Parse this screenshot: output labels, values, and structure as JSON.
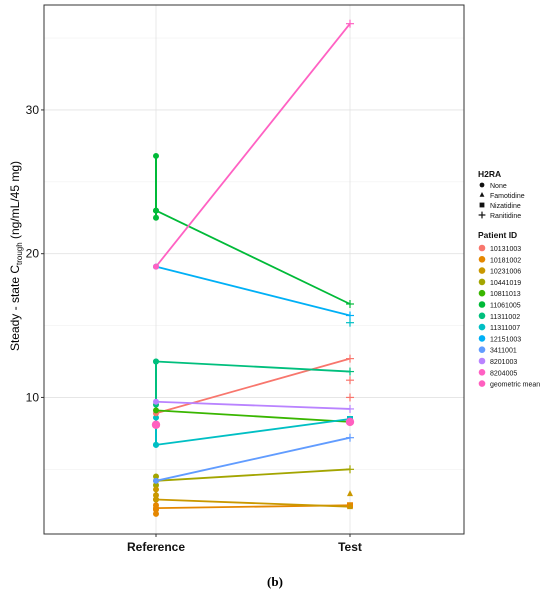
{
  "caption": "(b)",
  "chart_data": {
    "type": "line",
    "xlabel": "",
    "ylabel_main": "Steady - state C",
    "ylabel_sub": "trough",
    "ylabel_tail": " (ng/mL/45 mg)",
    "categories": [
      "Reference",
      "Test"
    ],
    "yticks": [
      10,
      20,
      30
    ],
    "ylim": [
      0.5,
      37.3
    ],
    "grid": true,
    "legend": {
      "position": "right",
      "h2ra_title": "H2RA",
      "h2ra_items": [
        {
          "label": "None",
          "shape": "circle"
        },
        {
          "label": "Famotidine",
          "shape": "triangle"
        },
        {
          "label": "Nizatidine",
          "shape": "square"
        },
        {
          "label": "Ranitidine",
          "shape": "plus"
        }
      ],
      "patient_title": "Patient ID",
      "patient_items": [
        {
          "label": "10131003",
          "color": "#F8766D"
        },
        {
          "label": "10181002",
          "color": "#E58700"
        },
        {
          "label": "10231006",
          "color": "#C99800"
        },
        {
          "label": "10441019",
          "color": "#A3A500"
        },
        {
          "label": "10811013",
          "color": "#39B600"
        },
        {
          "label": "11061005",
          "color": "#00BA38"
        },
        {
          "label": "11311002",
          "color": "#00BF7D"
        },
        {
          "label": "11311007",
          "color": "#00BFC4"
        },
        {
          "label": "12151003",
          "color": "#00B0F6"
        },
        {
          "label": "3411001",
          "color": "#619CFF"
        },
        {
          "label": "8201003",
          "color": "#B983FF"
        },
        {
          "label": "8204005",
          "color": "#FF61C3"
        },
        {
          "label": "geometric mean",
          "color": "#FF5FBF"
        }
      ]
    },
    "series": [
      {
        "name": "10131003",
        "color": "#F8766D",
        "values": [
          8.9,
          12.7
        ],
        "marker": "plus"
      },
      {
        "name": "10181002",
        "color": "#E58700",
        "values": [
          2.3,
          2.5
        ],
        "marker": "square"
      },
      {
        "name": "10231006",
        "color": "#C99800",
        "values": [
          2.9,
          2.4
        ],
        "marker": "triangle"
      },
      {
        "name": "10441019",
        "color": "#A3A500",
        "values": [
          4.2,
          5.0
        ],
        "marker": "plus"
      },
      {
        "name": "10811013",
        "color": "#39B600",
        "values": [
          9.1,
          8.3
        ],
        "marker": "circle"
      },
      {
        "name": "11061005",
        "color": "#00BA38",
        "values": [
          23.0,
          16.5
        ],
        "marker": "plus"
      },
      {
        "name": "11311002",
        "color": "#00BF7D",
        "values": [
          12.5,
          11.8
        ],
        "marker": "plus"
      },
      {
        "name": "11311007",
        "color": "#00BFC4",
        "values": [
          6.7,
          8.5
        ],
        "marker": "square"
      },
      {
        "name": "12151003",
        "color": "#00B0F6",
        "values": [
          19.1,
          15.7
        ],
        "marker": "plus"
      },
      {
        "name": "3411001",
        "color": "#619CFF",
        "values": [
          4.2,
          7.2
        ],
        "marker": "plus"
      },
      {
        "name": "8201003",
        "color": "#B983FF",
        "values": [
          9.7,
          9.2
        ],
        "marker": "plus"
      },
      {
        "name": "8204005",
        "color": "#FF61C3",
        "values": [
          19.1,
          36.0
        ],
        "marker": "plus"
      }
    ],
    "reference_replicates": [
      {
        "color": "#00BA38",
        "values": [
          26.8,
          23.0,
          22.5
        ]
      },
      {
        "color": "#00BF7D",
        "values": [
          12.5,
          9.5
        ]
      },
      {
        "color": "#00BFC4",
        "values": [
          8.6,
          6.7
        ]
      },
      {
        "color": "#A3A500",
        "values": [
          4.5,
          3.9
        ]
      },
      {
        "color": "#C99800",
        "values": [
          3.6,
          3.2,
          2.9
        ]
      },
      {
        "color": "#E58700",
        "values": [
          2.5,
          2.2,
          1.9
        ]
      }
    ],
    "test_extra": [
      {
        "color": "#F8766D",
        "values": [
          11.2,
          10.0
        ],
        "marker": "plus"
      },
      {
        "color": "#C99800",
        "values": [
          3.3
        ],
        "marker": "triangle"
      },
      {
        "color": "#00BFC4",
        "values": [
          15.2
        ],
        "marker": "plus"
      }
    ],
    "geometric_mean": {
      "values": [
        8.1,
        8.3
      ],
      "color": "#FF5FBF"
    }
  }
}
